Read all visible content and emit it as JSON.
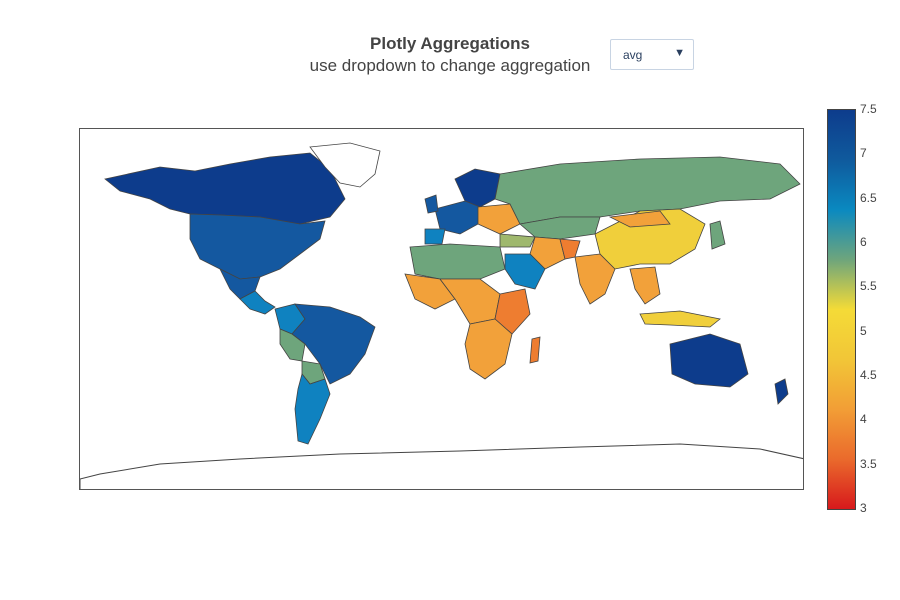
{
  "title": "Plotly Aggregations",
  "subtitle": "use dropdown to change aggregation",
  "dropdown": {
    "selected": "avg"
  },
  "colorbar": {
    "min": 3,
    "max": 7.5,
    "ticks": [
      "7.5",
      "7",
      "6.5",
      "6",
      "5.5",
      "5",
      "4.5",
      "4",
      "3.5",
      "3"
    ],
    "colorscale": [
      "#d7191c",
      "#ea6a2c",
      "#f29e36",
      "#f2c637",
      "#f4db37",
      "#6ea57c",
      "#0a89c0",
      "#0f5a9d",
      "#0d3c8c"
    ]
  },
  "map": {
    "colors": {
      "high": "#0d3c8c",
      "midhigh": "#1458a0",
      "mid": "#0f82c0",
      "green": "#6ea57c",
      "olive": "#9fb86d",
      "yellow": "#f0cf3b",
      "orange": "#f2a13a",
      "darkorange": "#ee7d30",
      "red": "#e1472a",
      "land_outline": "#444444"
    }
  }
}
